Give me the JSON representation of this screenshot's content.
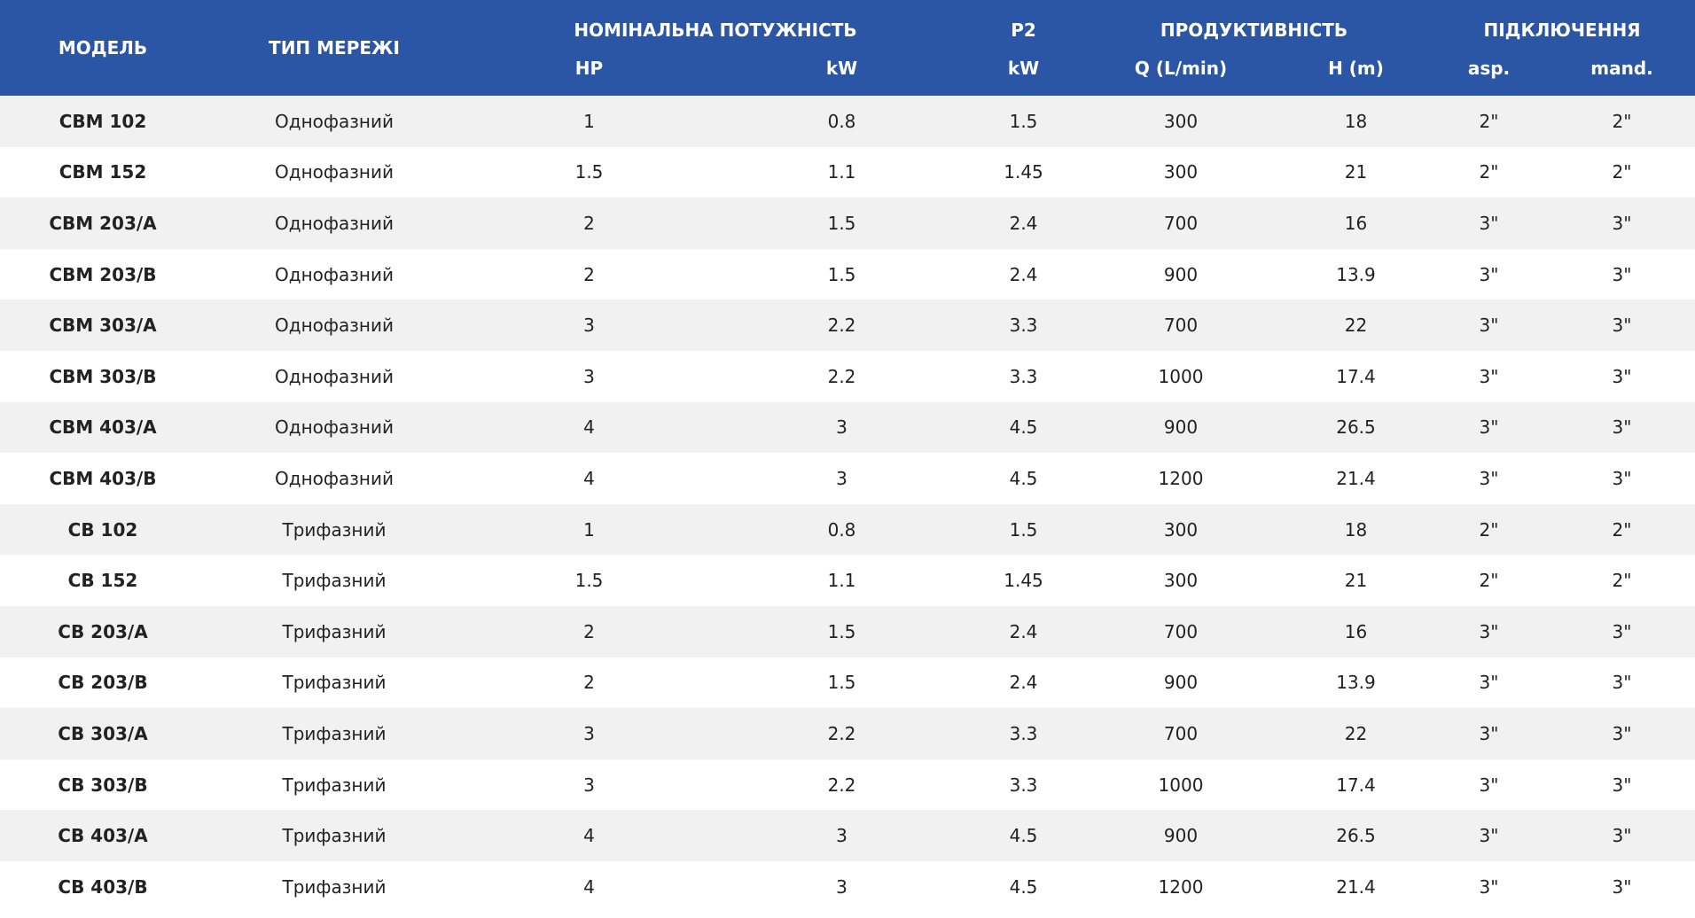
{
  "header": {
    "model": "МОДЕЛЬ",
    "network_type": "ТИП МЕРЕЖІ",
    "nominal_power": "НОМІНАЛЬНА ПОТУЖНІСТЬ",
    "p2": "P2",
    "performance": "ПРОДУКТИВНІСТЬ",
    "connection": "ПІДКЛЮЧЕННЯ",
    "hp": "HP",
    "kw1": "kW",
    "kw2": "kW",
    "q": "Q (L/min)",
    "h": "H (m)",
    "asp": "asp.",
    "mand": "mand."
  },
  "rows": [
    {
      "model": "CBM 102",
      "type": "Однофазний",
      "hp": "1",
      "kw": "0.8",
      "p2": "1.5",
      "q": "300",
      "h": "18",
      "asp": "2\"",
      "mand": "2\""
    },
    {
      "model": "CBM 152",
      "type": "Однофазний",
      "hp": "1.5",
      "kw": "1.1",
      "p2": "1.45",
      "q": "300",
      "h": "21",
      "asp": "2\"",
      "mand": "2\""
    },
    {
      "model": "CBM 203/A",
      "type": "Однофазний",
      "hp": "2",
      "kw": "1.5",
      "p2": "2.4",
      "q": "700",
      "h": "16",
      "asp": "3\"",
      "mand": "3\""
    },
    {
      "model": "CBM 203/B",
      "type": "Однофазний",
      "hp": "2",
      "kw": "1.5",
      "p2": "2.4",
      "q": "900",
      "h": "13.9",
      "asp": "3\"",
      "mand": "3\""
    },
    {
      "model": "CBM 303/A",
      "type": "Однофазний",
      "hp": "3",
      "kw": "2.2",
      "p2": "3.3",
      "q": "700",
      "h": "22",
      "asp": "3\"",
      "mand": "3\""
    },
    {
      "model": "CBM 303/B",
      "type": "Однофазний",
      "hp": "3",
      "kw": "2.2",
      "p2": "3.3",
      "q": "1000",
      "h": "17.4",
      "asp": "3\"",
      "mand": "3\""
    },
    {
      "model": "CBM 403/A",
      "type": "Однофазний",
      "hp": "4",
      "kw": "3",
      "p2": "4.5",
      "q": "900",
      "h": "26.5",
      "asp": "3\"",
      "mand": "3\""
    },
    {
      "model": "CBM 403/B",
      "type": "Однофазний",
      "hp": "4",
      "kw": "3",
      "p2": "4.5",
      "q": "1200",
      "h": "21.4",
      "asp": "3\"",
      "mand": "3\""
    },
    {
      "model": "CB 102",
      "type": "Трифазний",
      "hp": "1",
      "kw": "0.8",
      "p2": "1.5",
      "q": "300",
      "h": "18",
      "asp": "2\"",
      "mand": "2\""
    },
    {
      "model": "CB 152",
      "type": "Трифазний",
      "hp": "1.5",
      "kw": "1.1",
      "p2": "1.45",
      "q": "300",
      "h": "21",
      "asp": "2\"",
      "mand": "2\""
    },
    {
      "model": "CB 203/A",
      "type": "Трифазний",
      "hp": "2",
      "kw": "1.5",
      "p2": "2.4",
      "q": "700",
      "h": "16",
      "asp": "3\"",
      "mand": "3\""
    },
    {
      "model": "CB 203/B",
      "type": "Трифазний",
      "hp": "2",
      "kw": "1.5",
      "p2": "2.4",
      "q": "900",
      "h": "13.9",
      "asp": "3\"",
      "mand": "3\""
    },
    {
      "model": "CB 303/A",
      "type": "Трифазний",
      "hp": "3",
      "kw": "2.2",
      "p2": "3.3",
      "q": "700",
      "h": "22",
      "asp": "3\"",
      "mand": "3\""
    },
    {
      "model": "CB 303/B",
      "type": "Трифазний",
      "hp": "3",
      "kw": "2.2",
      "p2": "3.3",
      "q": "1000",
      "h": "17.4",
      "asp": "3\"",
      "mand": "3\""
    },
    {
      "model": "CB 403/A",
      "type": "Трифазний",
      "hp": "4",
      "kw": "3",
      "p2": "4.5",
      "q": "900",
      "h": "26.5",
      "asp": "3\"",
      "mand": "3\""
    },
    {
      "model": "CB 403/B",
      "type": "Трифазний",
      "hp": "4",
      "kw": "3",
      "p2": "4.5",
      "q": "1200",
      "h": "21.4",
      "asp": "3\"",
      "mand": "3\""
    }
  ]
}
